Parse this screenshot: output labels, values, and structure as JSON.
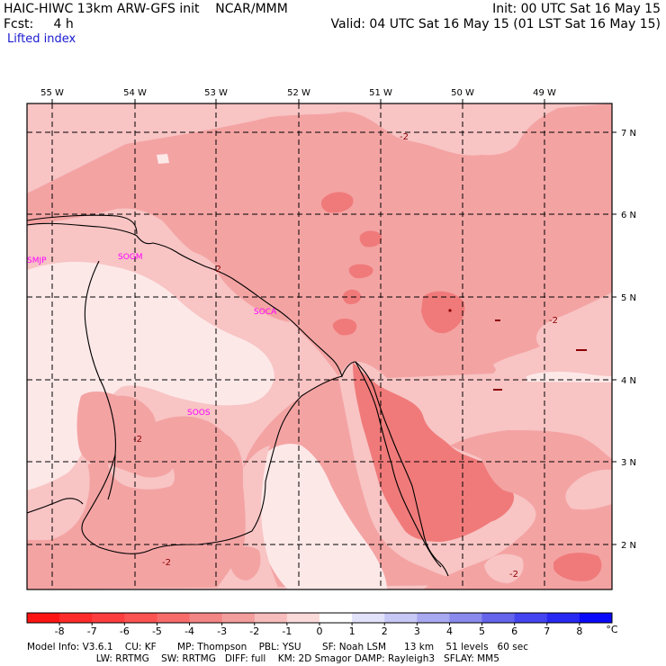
{
  "header": {
    "left_line1": "HAIC-HIWC 13km ARW-GFS init    NCAR/MMM",
    "left_line2": "Fcst:     4 h",
    "field_name": "Lifted index",
    "init_text": "Init: 00 UTC Sat 16 May 15",
    "valid_text": "Valid: 04 UTC Sat 16 May 15 (01 LST Sat 16 May 15)"
  },
  "map": {
    "lon_labels": [
      "55 W",
      "54 W",
      "53 W",
      "52 W",
      "51 W",
      "50 W",
      "49 W"
    ],
    "lat_labels": [
      "7 N",
      "6 N",
      "5 N",
      "4 N",
      "3 N",
      "2 N"
    ],
    "stations": [
      {
        "id": "SMJP",
        "color": "#ff00ff"
      },
      {
        "id": "SOGM",
        "color": "#ff00ff"
      },
      {
        "id": "SOCA",
        "color": "#ff00ff"
      },
      {
        "id": "SOOS",
        "color": "#ff00ff"
      }
    ],
    "contour_labels": [
      "-2",
      "-2",
      "-2",
      "-2",
      "-2",
      "-2"
    ],
    "fill_colors": {
      "le_minus4": "#f07a7a",
      "minus3_to_minus2": "#f4a3a3",
      "minus2_to_minus1": "#f8c4c4",
      "minus1_to_0": "#fde8e8"
    }
  },
  "colorbar": {
    "labels": [
      "-8",
      "-7",
      "-6",
      "-5",
      "-4",
      "-3",
      "-2",
      "-1",
      "0",
      "1",
      "2",
      "3",
      "4",
      "5",
      "6",
      "7",
      "8"
    ],
    "unit": "°C",
    "colors": [
      "#ff1414",
      "#ff2b2b",
      "#fe3e3e",
      "#fb5252",
      "#f76b6b",
      "#f48585",
      "#f39d9d",
      "#f7bcbc",
      "#fbdada",
      "#ffffff",
      "#e2e2fb",
      "#c8c8f6",
      "#a9a9f1",
      "#8a8aee",
      "#6464ec",
      "#4444f0",
      "#2828f2",
      "#0a0afa"
    ]
  },
  "footer": {
    "line1": "Model Info: V3.6.1    CU: KF       MP: Thompson    PBL: YSU       SF: Noah LSM      13 km    51 levels   60 sec",
    "line2": "                       LW: RRTMG    SW: RRTMG   DIFF: full    KM: 2D Smagor DAMP: Rayleigh3   SFLAY: MM5"
  }
}
